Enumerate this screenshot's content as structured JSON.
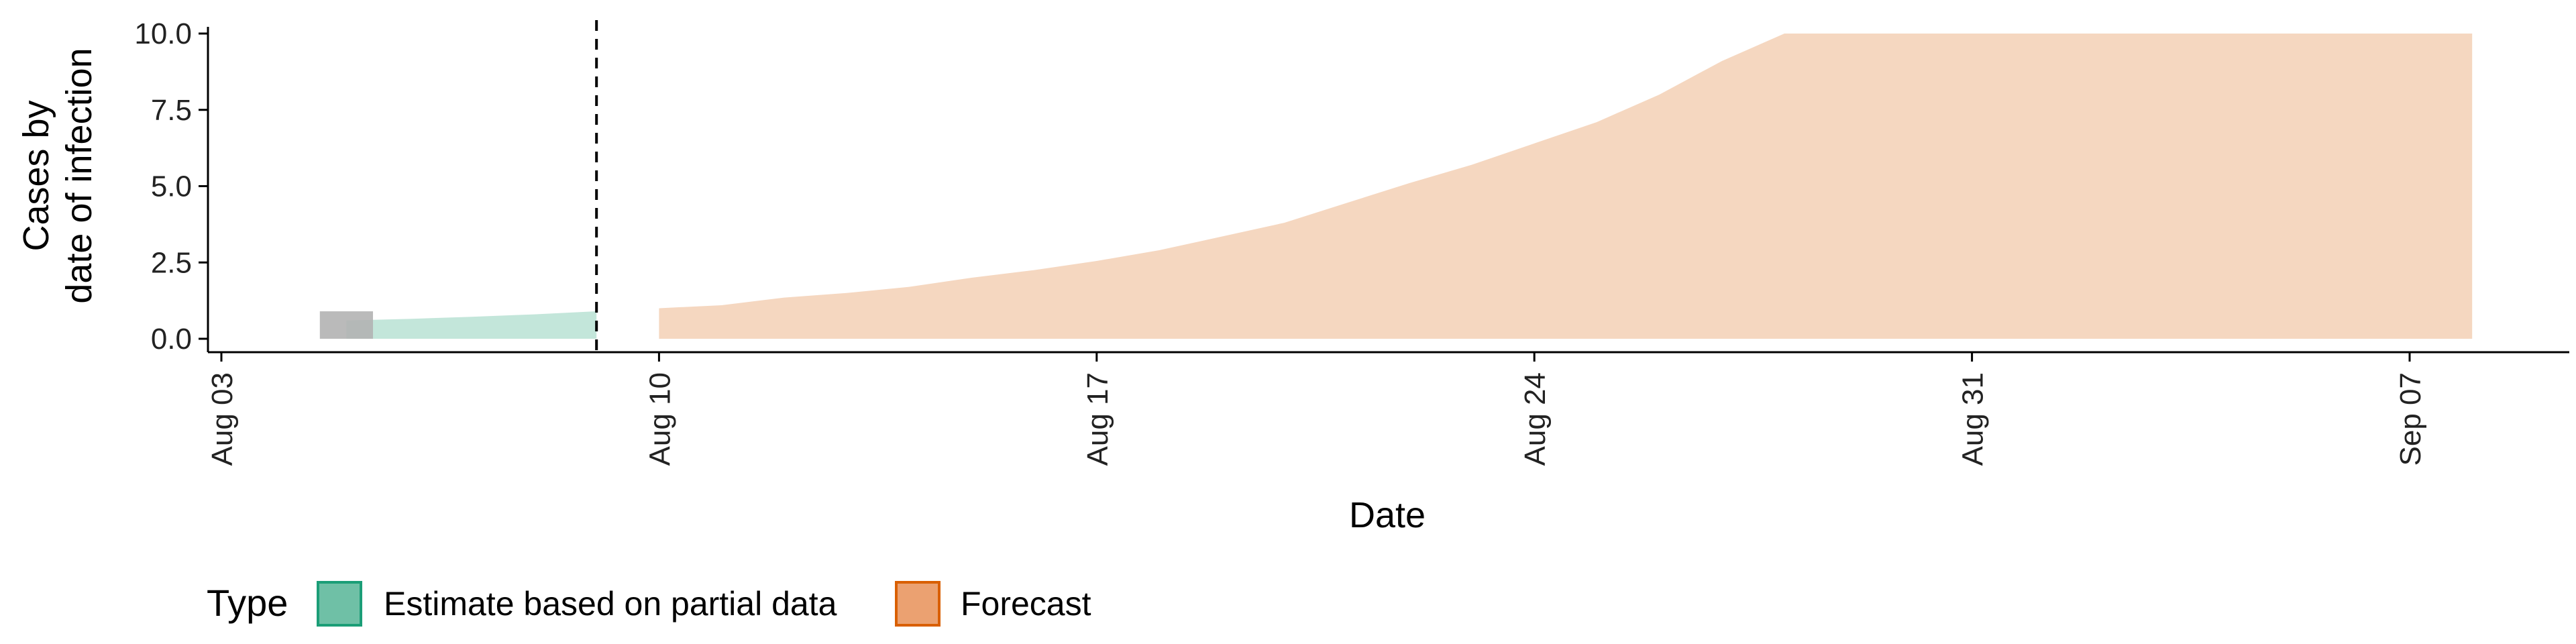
{
  "chart_data": {
    "type": "area",
    "xlabel": "Date",
    "ylabel_lines": [
      "Cases by",
      "date of infection"
    ],
    "ylim": [
      0,
      10
    ],
    "y_ticks": [
      0,
      2.5,
      5,
      7.5,
      10
    ],
    "y_tick_labels": [
      "0.0",
      "2.5",
      "5.0",
      "7.5",
      "10.0"
    ],
    "x_tick_labels": [
      "Aug 03",
      "Aug 10",
      "Aug 17",
      "Aug 24",
      "Aug 31",
      "Sep 07"
    ],
    "x_tick_dates": [
      "2020-08-03",
      "2020-08-10",
      "2020-08-17",
      "2020-08-24",
      "2020-08-31",
      "2020-09-07"
    ],
    "x_range": [
      "2020-08-03",
      "2020-09-09"
    ],
    "vline_date": "2020-08-09",
    "colors": {
      "estimate_fill": "#c3e6da",
      "estimate_key": "#6fc0a6",
      "estimate_key_border": "#1b9e77",
      "forecast_fill": "#f5d7c0",
      "forecast_key": "#eba171",
      "forecast_key_border": "#d95f02",
      "observed_bar": "#b3b3b3",
      "vline": "#000000"
    },
    "legend": {
      "title": "Type",
      "position": "bottom-left",
      "items": [
        "Estimate based on partial data",
        "Forecast"
      ]
    },
    "series": [
      {
        "name": "Estimate based on partial data",
        "dates": [
          "2020-08-05",
          "2020-08-06",
          "2020-08-07",
          "2020-08-08",
          "2020-08-09"
        ],
        "lower": [
          0,
          0,
          0,
          0,
          0
        ],
        "upper": [
          0.6,
          0.65,
          0.72,
          0.8,
          0.9
        ]
      },
      {
        "name": "Forecast",
        "dates": [
          "2020-08-10",
          "2020-08-11",
          "2020-08-12",
          "2020-08-13",
          "2020-08-14",
          "2020-08-15",
          "2020-08-16",
          "2020-08-17",
          "2020-08-18",
          "2020-08-19",
          "2020-08-20",
          "2020-08-21",
          "2020-08-22",
          "2020-08-23",
          "2020-08-24",
          "2020-08-25",
          "2020-08-26",
          "2020-08-27",
          "2020-08-28",
          "2020-08-29",
          "2020-08-30",
          "2020-08-31",
          "2020-09-01",
          "2020-09-02",
          "2020-09-03",
          "2020-09-04",
          "2020-09-05",
          "2020-09-06",
          "2020-09-07",
          "2020-09-08"
        ],
        "lower": [
          0,
          0,
          0,
          0,
          0,
          0,
          0,
          0,
          0,
          0,
          0,
          0,
          0,
          0,
          0,
          0,
          0,
          0,
          0,
          0,
          0,
          0,
          0,
          0,
          0,
          0,
          0,
          0,
          0,
          0
        ],
        "upper": [
          1.0,
          1.1,
          1.35,
          1.5,
          1.7,
          2.0,
          2.25,
          2.55,
          2.9,
          3.35,
          3.8,
          4.45,
          5.1,
          5.7,
          6.4,
          7.1,
          8.0,
          9.1,
          10,
          10,
          10,
          10,
          10,
          10,
          10,
          10,
          10,
          10,
          10,
          10
        ]
      }
    ],
    "observed": [
      {
        "date": "2020-08-05",
        "value": 0.9,
        "width_days": 0.85
      }
    ]
  }
}
